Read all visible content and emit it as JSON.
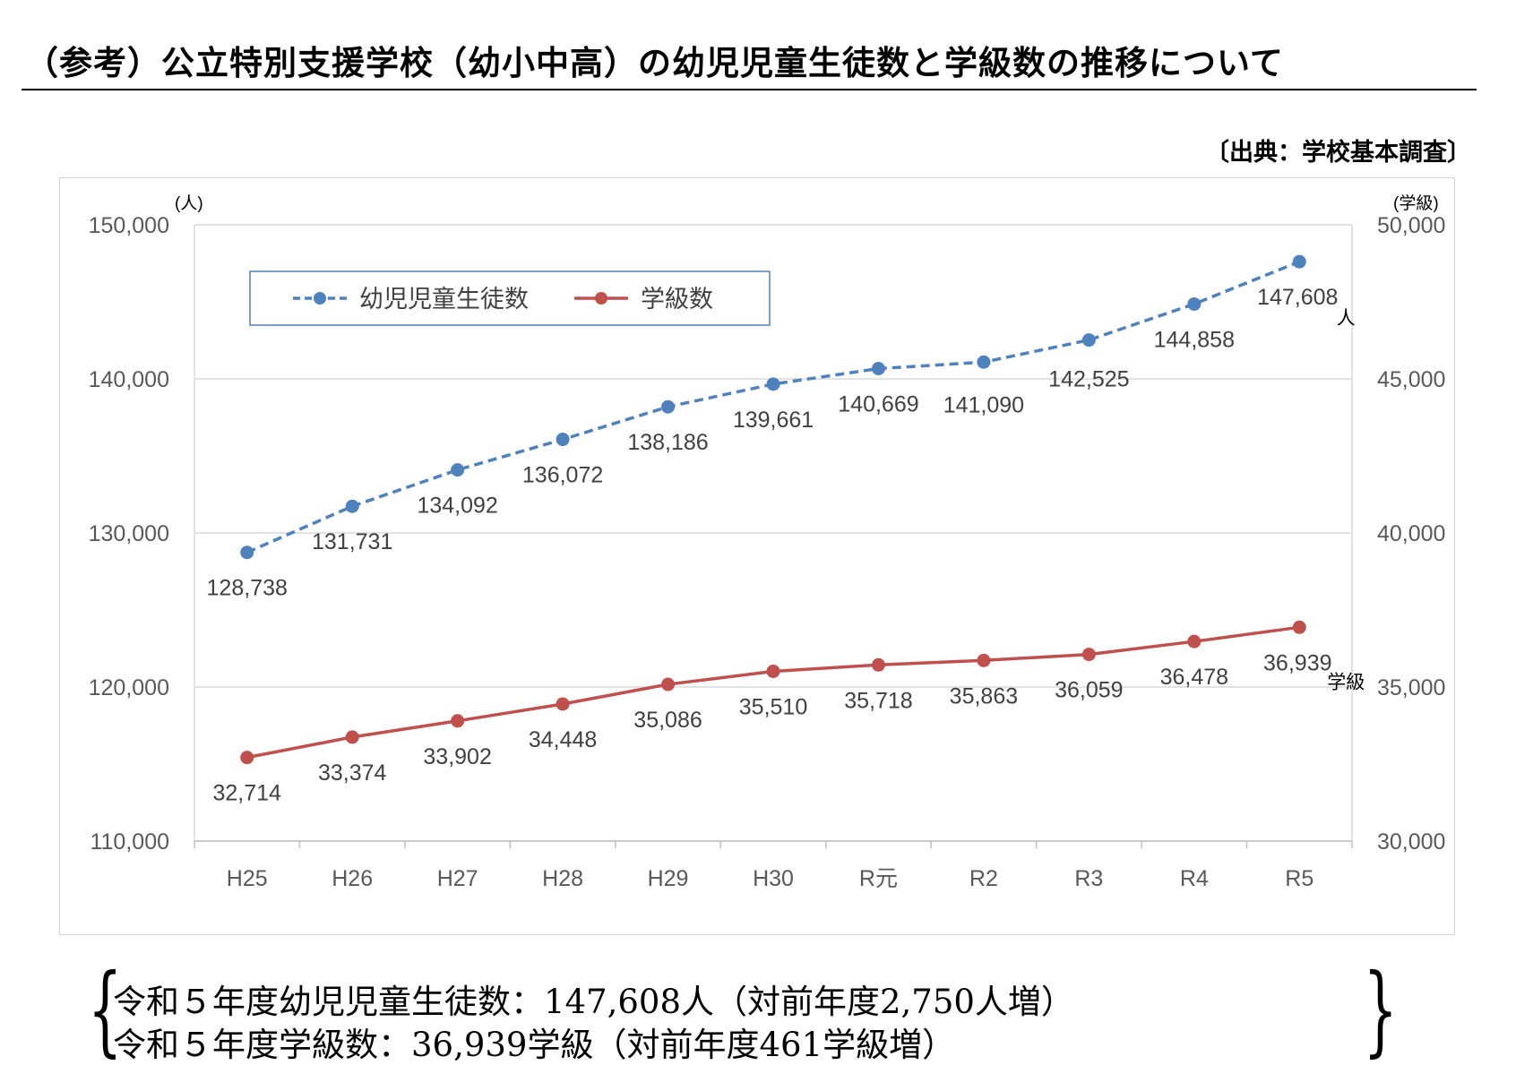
{
  "title": "（参考）公立特別支援学校（幼小中高）の幼児児童生徒数と学級数の推移について",
  "source": "〔出典：学校基本調査〕",
  "chart_data": {
    "type": "line",
    "categories": [
      "H25",
      "H26",
      "H27",
      "H28",
      "H29",
      "H30",
      "R元",
      "R2",
      "R3",
      "R4",
      "R5"
    ],
    "y_left": {
      "unit": "(人)",
      "ylim": [
        110000,
        150000
      ],
      "ticks": [
        "110,000",
        "120,000",
        "130,000",
        "140,000",
        "150,000"
      ],
      "tick_values": [
        110000,
        120000,
        130000,
        140000,
        150000
      ]
    },
    "y_right": {
      "unit": "(学級)",
      "ylim": [
        30000,
        50000
      ],
      "ticks": [
        "30,000",
        "35,000",
        "40,000",
        "45,000",
        "50,000"
      ],
      "tick_values": [
        30000,
        35000,
        40000,
        45000,
        50000
      ]
    },
    "grid": true,
    "legend": "top-left",
    "series": [
      {
        "name": "幼児児童生徒数",
        "axis": "left",
        "color": "#4f81bd",
        "dashed": true,
        "values": [
          128738,
          131731,
          134092,
          136072,
          138186,
          139661,
          140669,
          141090,
          142525,
          144858,
          147608
        ],
        "labels": [
          "128,738",
          "131,731",
          "134,092",
          "136,072",
          "138,186",
          "139,661",
          "140,669",
          "141,090",
          "142,525",
          "144,858",
          "147,608"
        ],
        "end_unit": "人"
      },
      {
        "name": "学級数",
        "axis": "right",
        "color": "#c0504d",
        "dashed": false,
        "values": [
          32714,
          33374,
          33902,
          34448,
          35086,
          35510,
          35718,
          35863,
          36059,
          36478,
          36939
        ],
        "labels": [
          "32,714",
          "33,374",
          "33,902",
          "34,448",
          "35,086",
          "35,510",
          "35,718",
          "35,863",
          "36,059",
          "36,478",
          "36,939"
        ],
        "end_unit": "学級"
      }
    ]
  },
  "summary": {
    "line1": "令和５年度幼児児童生徒数：147,608人（対前年度2,750人増）",
    "line2": "令和５年度学級数：36,939学級（対前年度461学級増）",
    "brace_left": "{",
    "brace_right": "}"
  }
}
